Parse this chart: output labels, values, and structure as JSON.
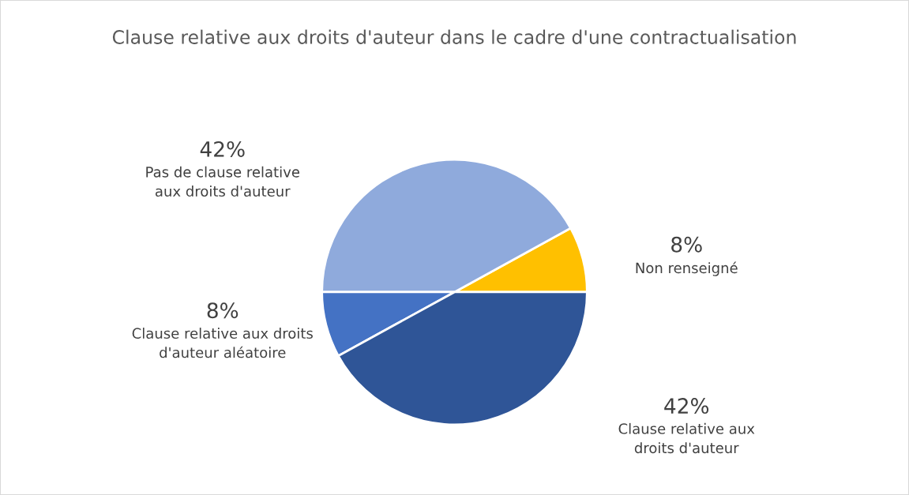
{
  "chart_data": {
    "type": "pie",
    "title": "Clause relative aux droits d'auteur dans le cadre d'une contractualisation",
    "categories": [
      "Non renseigné",
      "Pas de clause relative\naux droits d'auteur",
      "Clause relative aux droits\nd'auteur aléatoire",
      "Clause relative aux\ndroits d'auteur"
    ],
    "values": [
      8,
      42,
      8,
      42
    ],
    "value_labels": [
      "8%",
      "42%",
      "8%",
      "42%"
    ],
    "colors": [
      "#ffc000",
      "#8faadc",
      "#4472c4",
      "#2f5597"
    ]
  }
}
